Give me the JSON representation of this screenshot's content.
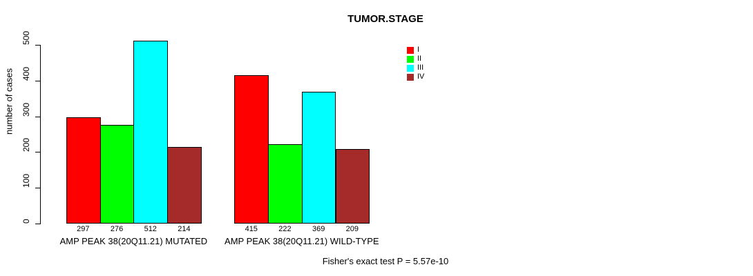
{
  "title": "TUMOR.STAGE",
  "y_axis": {
    "label": "number of cases"
  },
  "footer": "Fisher's exact test P = 5.57e-10",
  "legend": {
    "position": "top-right",
    "items": [
      {
        "label": "I",
        "color": "#FF0000"
      },
      {
        "label": "II",
        "color": "#00FF00"
      },
      {
        "label": "III",
        "color": "#00FFFF"
      },
      {
        "label": "IV",
        "color": "#A52A2A"
      }
    ]
  },
  "chart_data": {
    "type": "bar",
    "title": "TUMOR.STAGE",
    "xlabel": "",
    "ylabel": "number of cases",
    "ylim": [
      0,
      500
    ],
    "yticks": [
      0,
      100,
      200,
      300,
      400,
      500
    ],
    "grid": false,
    "legend_position": "top-right",
    "bar_value_labels": true,
    "categories": [
      "AMP PEAK 38(20Q11.21) MUTATED",
      "AMP PEAK 38(20Q11.21) WILD-TYPE"
    ],
    "series": [
      {
        "name": "I",
        "color": "#FF0000",
        "values": [
          297,
          415
        ]
      },
      {
        "name": "II",
        "color": "#00FF00",
        "values": [
          276,
          222
        ]
      },
      {
        "name": "III",
        "color": "#00FFFF",
        "values": [
          512,
          369
        ]
      },
      {
        "name": "IV",
        "color": "#A52A2A",
        "values": [
          214,
          209
        ]
      }
    ],
    "annotation": "Fisher's exact test P = 5.57e-10"
  }
}
